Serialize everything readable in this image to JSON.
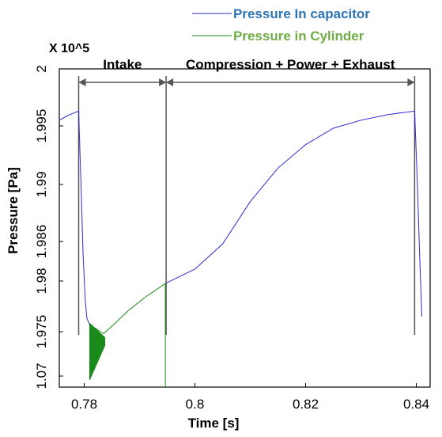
{
  "chart_data": {
    "type": "line",
    "title": "",
    "xlabel": "Time [s]",
    "ylabel": "Pressure [Pa]",
    "y_multiplier_label": "X 10^5",
    "xlim": [
      0.7755,
      0.8425
    ],
    "x_ticks": [
      0.78,
      0.8,
      0.82,
      0.84
    ],
    "x_tick_labels": [
      "0.78",
      "0.8",
      "0.82",
      "0.84"
    ],
    "y_ticks": [
      1.07,
      1.975,
      1.98,
      1.986,
      1.99,
      1.995,
      2
    ],
    "y_tick_labels": [
      "1.07",
      "1.975",
      "1.98",
      "1.986",
      "1.99",
      "1.995",
      "2"
    ],
    "grid": false,
    "legend": {
      "placement": "top-right",
      "entries": [
        {
          "name": "Pressure In capacitor",
          "color": "#2e75b6",
          "line_color": "#2b2bd0"
        },
        {
          "name": "Pressure in Cylinder",
          "color": "#70ad47",
          "line_color": "#1a8a1a"
        }
      ]
    },
    "annotations": [
      {
        "text": "Intake",
        "x_start": 0.779,
        "x_end": 0.7948
      },
      {
        "text": "Compression + Power + Exhaust",
        "x_start": 0.7948,
        "x_end": 0.8397
      }
    ],
    "series": [
      {
        "name": "Pressure In capacitor",
        "color": "#2b2bd0",
        "points": [
          [
            0.7755,
            1.9955
          ],
          [
            0.777,
            1.9959
          ],
          [
            0.7785,
            1.9962
          ],
          [
            0.779,
            1.9963
          ],
          [
            0.7795,
            1.989
          ],
          [
            0.7798,
            1.984
          ],
          [
            0.7802,
            1.978
          ],
          [
            0.7805,
            1.9763
          ],
          [
            0.781,
            1.9757
          ]
        ]
      },
      {
        "name": "Pressure in Cylinder",
        "color": "#1a8a1a",
        "points": [
          [
            0.781,
            1.9757
          ],
          [
            0.7835,
            1.9748
          ],
          [
            0.7855,
            1.9758
          ],
          [
            0.788,
            1.9771
          ],
          [
            0.791,
            1.9784
          ],
          [
            0.7948,
            1.9798
          ]
        ]
      },
      {
        "name": "Pressure In capacitor",
        "color": "#2b2bd0",
        "points": [
          [
            0.7948,
            1.9798
          ],
          [
            0.8,
            1.9818
          ],
          [
            0.805,
            1.9856
          ],
          [
            0.81,
            1.9888
          ],
          [
            0.815,
            1.9914
          ],
          [
            0.82,
            1.9934
          ],
          [
            0.825,
            1.9948
          ],
          [
            0.83,
            1.9955
          ],
          [
            0.835,
            1.996
          ],
          [
            0.8397,
            1.9963
          ],
          [
            0.8402,
            1.99
          ],
          [
            0.8406,
            1.984
          ],
          [
            0.841,
            1.9765
          ]
        ]
      }
    ]
  }
}
